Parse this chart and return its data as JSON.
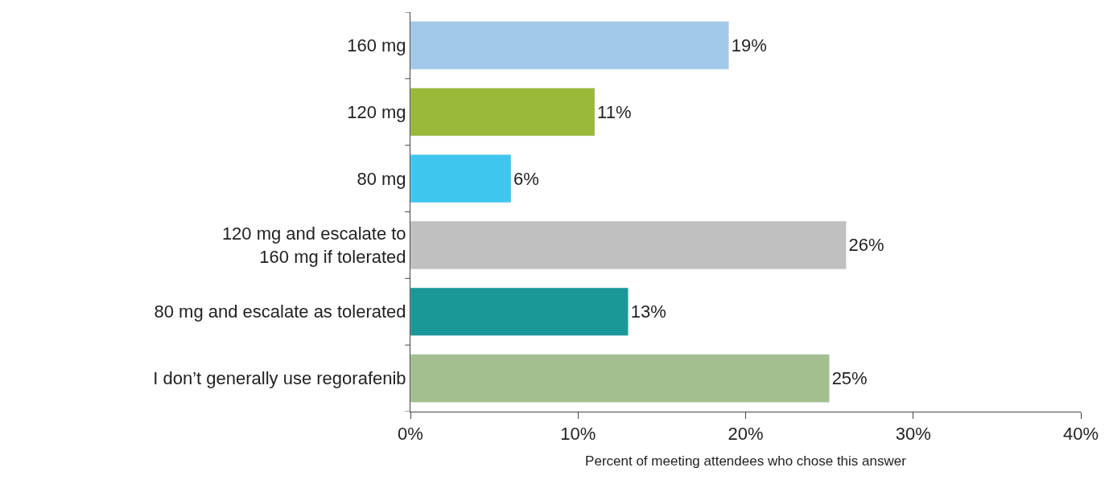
{
  "chart_data": {
    "type": "bar",
    "orientation": "horizontal",
    "xlabel": "Percent of meeting attendees who chose this answer",
    "categories": [
      "160 mg",
      "120 mg",
      "80 mg",
      "120 mg and escalate to\n160 mg if tolerated",
      "80 mg and escalate as tolerated",
      "I don’t generally use regorafenib"
    ],
    "values": [
      19,
      11,
      6,
      26,
      13,
      25
    ],
    "value_labels": [
      "19%",
      "11%",
      "6%",
      "26%",
      "13%",
      "25%"
    ],
    "colors": [
      "#a3c9ea",
      "#9ab83a",
      "#3ec6ef",
      "#c0c0c0",
      "#1a9898",
      "#a3bf8f"
    ],
    "xlim": [
      0,
      40
    ],
    "xticks": [
      {
        "value": 0,
        "label": "0%"
      },
      {
        "value": 10,
        "label": "10%"
      },
      {
        "value": 20,
        "label": "20%"
      },
      {
        "value": 30,
        "label": "30%"
      },
      {
        "value": 40,
        "label": "40%"
      }
    ]
  }
}
